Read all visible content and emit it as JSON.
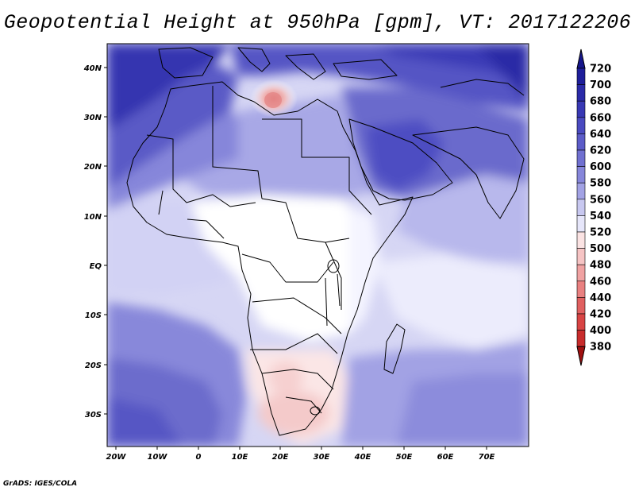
{
  "title": "Geopotential Height at 950hPa [gpm], VT: 2017122206",
  "credit": "GrADS: IGES/COLA",
  "map": {
    "variable": "Geopotential Height",
    "level": "950hPa",
    "units": "gpm",
    "valid_time": "2017122206",
    "lat_labels": [
      "40N",
      "30N",
      "20N",
      "10N",
      "EQ",
      "10S",
      "20S",
      "30S"
    ],
    "lon_labels": [
      "20W",
      "10W",
      "0",
      "10E",
      "20E",
      "30E",
      "40E",
      "50E",
      "60E",
      "70E"
    ],
    "region": "Africa / Middle East"
  },
  "colorbar": {
    "levels": [
      "720",
      "700",
      "680",
      "660",
      "640",
      "620",
      "600",
      "580",
      "560",
      "540",
      "520",
      "500",
      "480",
      "460",
      "440",
      "420",
      "400",
      "380"
    ],
    "colors": [
      "#1e1e9a",
      "#2a2aa8",
      "#3838b4",
      "#4a4ac0",
      "#5c5cc8",
      "#7070d0",
      "#8686da",
      "#a2a2e4",
      "#c8c8f0",
      "#e6e6fa",
      "#fbe3e3",
      "#f6c4c4",
      "#f0a2a2",
      "#e98080",
      "#e06060",
      "#d84444",
      "#c82c2c",
      "#b01c1c"
    ],
    "top_arrow_color": "#16168c",
    "bottom_arrow_color": "#a01010"
  }
}
